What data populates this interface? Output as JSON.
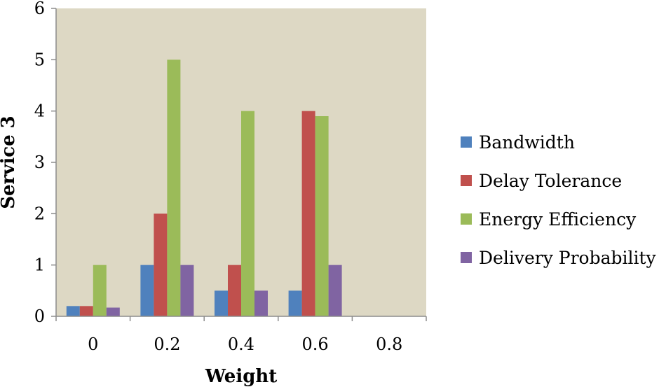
{
  "chart_data": {
    "type": "bar",
    "title": "",
    "xlabel": "Weight",
    "ylabel": "Service 3",
    "categories": [
      "0",
      "0.2",
      "0.4",
      "0.6",
      "0.8"
    ],
    "ylim": [
      0,
      6
    ],
    "yticks": [
      "0",
      "1",
      "2",
      "3",
      "4",
      "5",
      "6"
    ],
    "grid": false,
    "legend_position": "right",
    "plot_background": "#DDD8C4",
    "series": [
      {
        "name": "Bandwidth",
        "color": "#4F81BD",
        "values": [
          0.2,
          1,
          0.5,
          0.5,
          0
        ]
      },
      {
        "name": "Delay Tolerance",
        "color": "#C0504D",
        "values": [
          0.2,
          2,
          1,
          4,
          0
        ]
      },
      {
        "name": "Energy Efficiency",
        "color": "#9BBB59",
        "values": [
          1,
          5,
          4,
          3.9,
          0
        ]
      },
      {
        "name": "Delivery Probability",
        "color": "#8064A2",
        "values": [
          0.17,
          1,
          0.5,
          1,
          0
        ]
      }
    ]
  }
}
